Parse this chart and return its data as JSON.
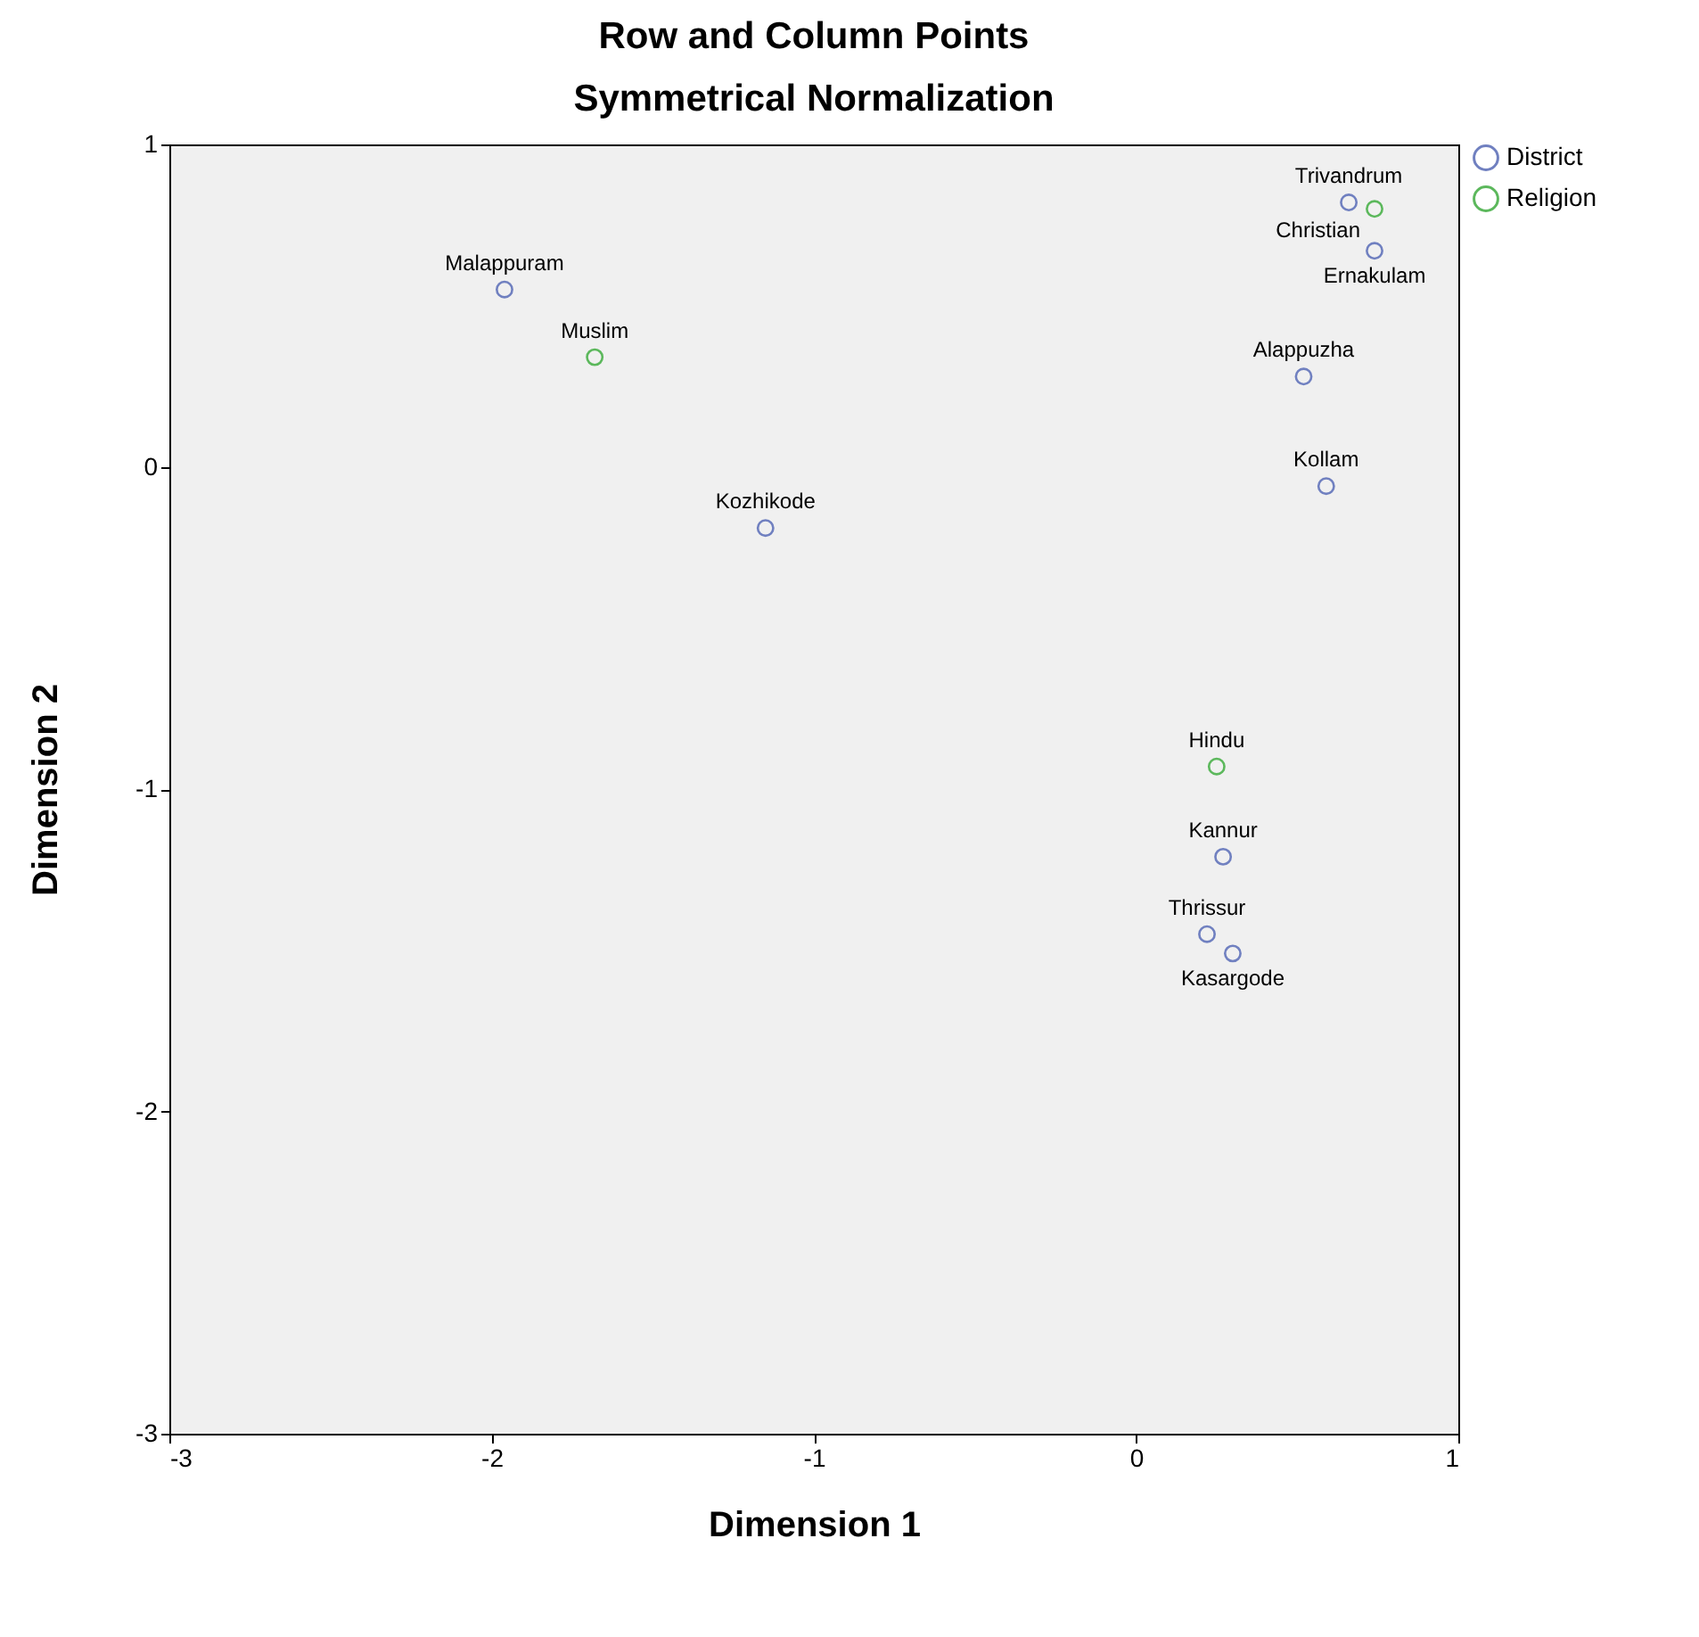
{
  "chart_data": {
    "type": "scatter",
    "title": "Row and Column Points",
    "subtitle": "Symmetrical Normalization",
    "xlabel": "Dimension 1",
    "ylabel": "Dimension 2",
    "xlim": [
      -3,
      1
    ],
    "ylim": [
      -3,
      1
    ],
    "xticks": [
      -3,
      -2,
      -1,
      0,
      1
    ],
    "yticks": [
      -3,
      -2,
      -1,
      0,
      1
    ],
    "legend": "top right",
    "marker": "circle",
    "series": [
      {
        "name": "District",
        "color": "#7080c0",
        "x": [
          -1.96,
          -1.15,
          0.66,
          0.74,
          0.52,
          0.59,
          0.27,
          0.22,
          0.3
        ],
        "values": [
          0.55,
          -0.19,
          0.82,
          0.67,
          0.28,
          -0.06,
          -1.21,
          -1.45,
          -1.51
        ]
      },
      {
        "name": "Religion",
        "color": "#5cb85c",
        "x": [
          -1.68,
          0.25,
          0.74
        ],
        "values": [
          0.34,
          -0.93,
          0.8
        ]
      }
    ],
    "annotations": [
      {
        "text": "Malappuram",
        "x": -1.96,
        "y": 0.55
      },
      {
        "text": "Kozhikode",
        "x": -1.15,
        "y": -0.19
      },
      {
        "text": "Trivandrum",
        "x": 0.66,
        "y": 0.82
      },
      {
        "text": "Ernakulam",
        "x": 0.74,
        "y": 0.67
      },
      {
        "text": "Alappuzha",
        "x": 0.52,
        "y": 0.28
      },
      {
        "text": "Kollam",
        "x": 0.59,
        "y": -0.06
      },
      {
        "text": "Kannur",
        "x": 0.27,
        "y": -1.21
      },
      {
        "text": "Thrissur",
        "x": 0.22,
        "y": -1.45
      },
      {
        "text": "Kasargode",
        "x": 0.3,
        "y": -1.51
      },
      {
        "text": "Muslim",
        "x": -1.68,
        "y": 0.34
      },
      {
        "text": "Hindu",
        "x": 0.25,
        "y": -0.93
      },
      {
        "text": "Christian",
        "x": 0.74,
        "y": 0.8
      }
    ]
  }
}
